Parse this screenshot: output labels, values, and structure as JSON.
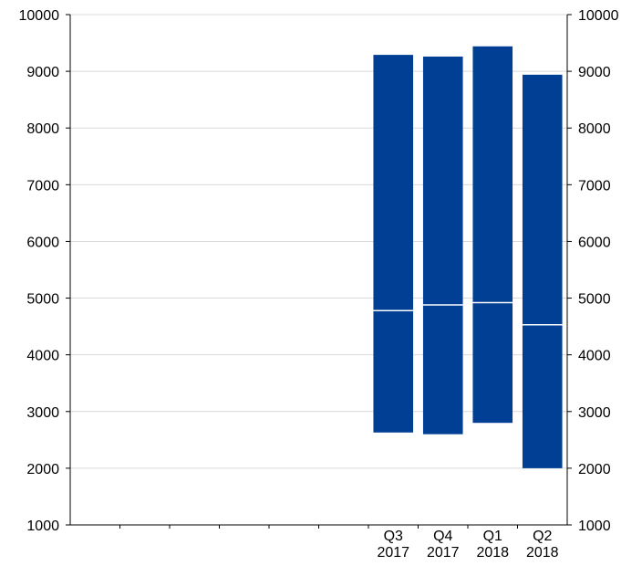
{
  "chart_data": {
    "type": "bar",
    "subtype": "floating-range",
    "categories": [
      {
        "quarter": "Q3",
        "year": "2017"
      },
      {
        "quarter": "Q4",
        "year": "2017"
      },
      {
        "quarter": "Q1",
        "year": "2018"
      },
      {
        "quarter": "Q2",
        "year": "2018"
      }
    ],
    "category_slots": 10,
    "first_category_slot": 6,
    "series": [
      {
        "low": [
          2630,
          2600,
          2800,
          2000
        ],
        "mid": [
          4780,
          4880,
          4920,
          4530
        ],
        "high": [
          9290,
          9260,
          9440,
          8940
        ]
      }
    ],
    "ylim": [
      1000,
      10000
    ],
    "yticks": [
      "1000",
      "2000",
      "3000",
      "4000",
      "5000",
      "6000",
      "7000",
      "8000",
      "9000",
      "10000"
    ],
    "y_axis_left": true,
    "y_axis_right": true,
    "grid": "horizontal",
    "colors": {
      "bar": "#003f94",
      "grid": "#d9d9d9",
      "axis": "#000000",
      "median_line": "#ffffff",
      "text": "#000000"
    }
  }
}
